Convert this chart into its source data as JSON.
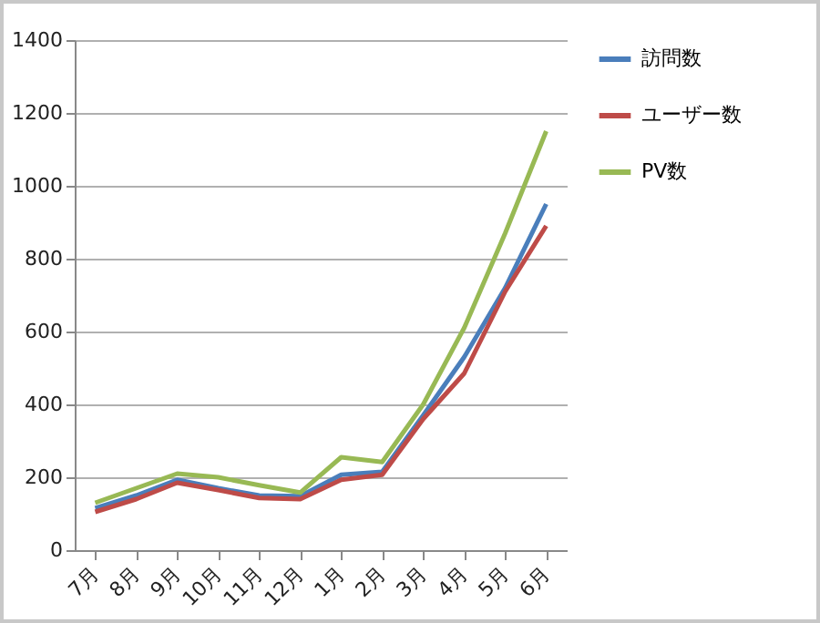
{
  "chart_data": {
    "type": "line",
    "categories": [
      "7月",
      "8月",
      "9月",
      "10月",
      "11月",
      "12月",
      "1月",
      "2月",
      "3月",
      "4月",
      "5月",
      "6月"
    ],
    "series": [
      {
        "name": "訪問数",
        "color": "#4a7ebb",
        "values": [
          115,
          150,
          193,
          170,
          150,
          148,
          207,
          215,
          370,
          530,
          720,
          950
        ]
      },
      {
        "name": "ユーザー数",
        "color": "#be4b48",
        "values": [
          105,
          140,
          185,
          165,
          143,
          140,
          193,
          207,
          360,
          485,
          710,
          890
        ]
      },
      {
        "name": "PV数",
        "color": "#98b954",
        "values": [
          130,
          170,
          210,
          200,
          178,
          158,
          255,
          242,
          400,
          610,
          870,
          1150
        ]
      }
    ],
    "ylim": [
      0,
      1400
    ],
    "yticks": [
      0,
      200,
      400,
      600,
      800,
      1000,
      1200,
      1400
    ],
    "grid": "y",
    "legend": "right",
    "marker": "none",
    "line_style": "solid"
  }
}
